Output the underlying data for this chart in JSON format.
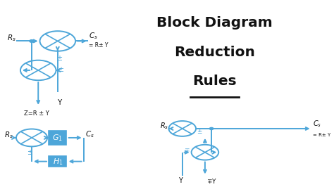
{
  "bg_color": "#ffffff",
  "blue": "#4da6d9",
  "black": "#111111",
  "title_lines": [
    "Block Diagram",
    "Reduction",
    "Rules"
  ],
  "fig_w": 4.74,
  "fig_h": 2.66,
  "dpi": 100
}
